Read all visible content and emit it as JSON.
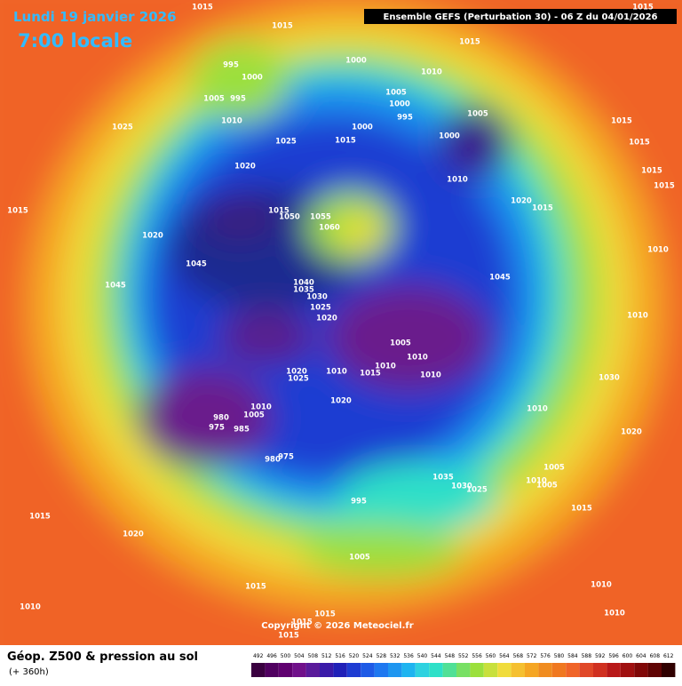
{
  "map": {
    "header_date": "Lundi 19 janvier 2026",
    "header_time": "7:00 locale",
    "run_info": "Ensemble GEFS  (Perturbation 30)  -  06 Z du 04/01/2026",
    "copyright": "Copyright © 2026 Meteociel.fr",
    "footer_title": "Géop. Z500 & pression au sol",
    "footer_lead": "(+ 360h)",
    "scale": [
      492,
      496,
      500,
      504,
      508,
      512,
      516,
      520,
      524,
      528,
      532,
      536,
      540,
      544,
      548,
      552,
      556,
      560,
      564,
      568,
      572,
      576,
      580,
      584,
      588,
      592,
      596,
      600,
      604,
      608,
      612
    ],
    "isobar_labels": [
      1015,
      1015,
      995,
      1000,
      1005,
      995,
      1010,
      1025,
      1025,
      1015,
      1020,
      1020,
      1045,
      1045,
      1015,
      1050,
      1055,
      1060,
      1000,
      1010,
      1015,
      1005,
      1000,
      995,
      1000,
      1015,
      1005,
      1000,
      1010,
      1015,
      1015,
      1015,
      1015,
      1015,
      1020,
      1015,
      1010,
      1045,
      1040,
      1035,
      1030,
      1025,
      1020,
      1005,
      1010,
      1010,
      1015,
      1010,
      1010,
      1020,
      1025,
      1020,
      1010,
      1030,
      1010,
      1020,
      980,
      975,
      1010,
      1005,
      985,
      980,
      975,
      1035,
      1030,
      1025,
      1010,
      1005,
      1005,
      995,
      1015,
      1015,
      1020,
      1005,
      1015,
      1010,
      1010,
      1010,
      1015,
      1015,
      1015
    ]
  }
}
